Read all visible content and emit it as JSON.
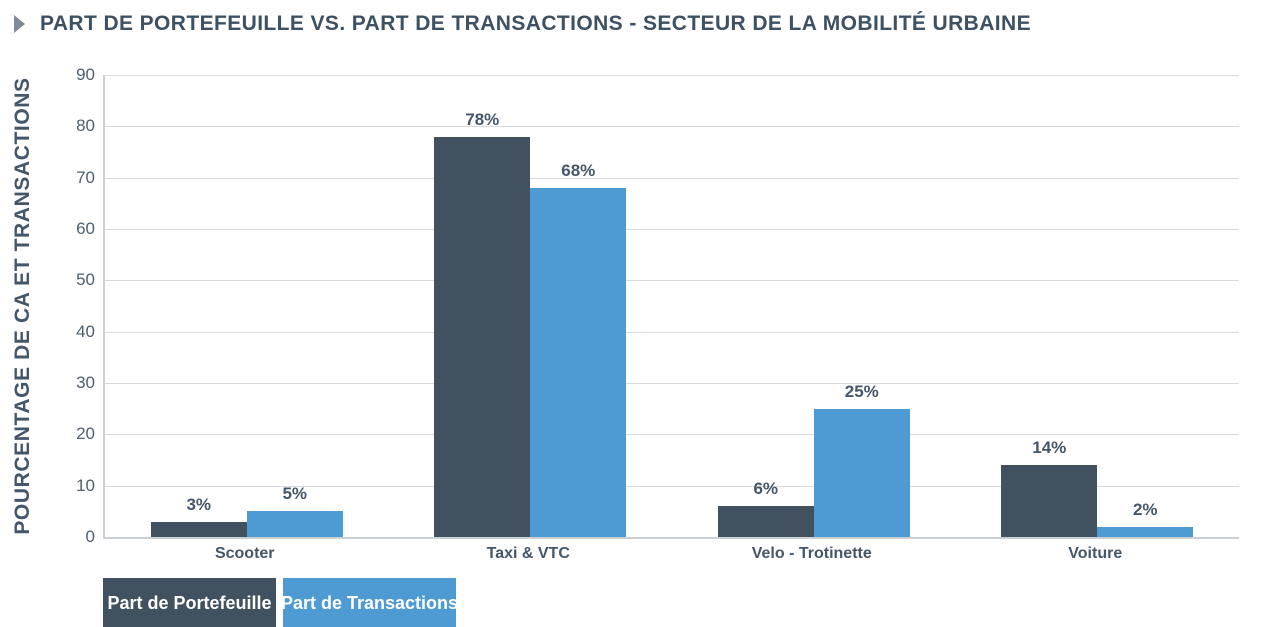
{
  "header": {
    "bullet_icon": "triangle-right-icon"
  },
  "chart_data": {
    "type": "bar",
    "title": "PART DE PORTEFEUILLE VS. PART DE TRANSACTIONS - SECTEUR DE LA MOBILITÉ URBAINE",
    "xlabel": "",
    "ylabel": "POURCENTAGE DE CA ET TRANSACTIONS",
    "categories": [
      "Scooter",
      "Taxi & VTC",
      "Velo - Trotinette",
      "Voiture"
    ],
    "series": [
      {
        "name": "Part de Portefeuille",
        "color": "#425160",
        "values": [
          3,
          78,
          6,
          14
        ],
        "value_labels": [
          "3%",
          "78%",
          "6%",
          "14%"
        ]
      },
      {
        "name": "Part de Transactions",
        "color": "#4E9AD2",
        "values": [
          5,
          68,
          25,
          2
        ],
        "value_labels": [
          "5%",
          "68%",
          "25%",
          "2%"
        ]
      }
    ],
    "ylim": [
      0,
      90
    ],
    "yticks": [
      0,
      10,
      20,
      30,
      40,
      50,
      60,
      70,
      80,
      90
    ],
    "grid": true,
    "legend_position": "bottom-left"
  },
  "colors": {
    "title_text": "#3D5163",
    "axis_text": "#44576A",
    "tick_text": "#4C5F72",
    "gridline": "#D7DADE",
    "axis_line": "#CBD0D6",
    "background": "#FFFFFF",
    "header_bullet": "#7F8C98"
  }
}
